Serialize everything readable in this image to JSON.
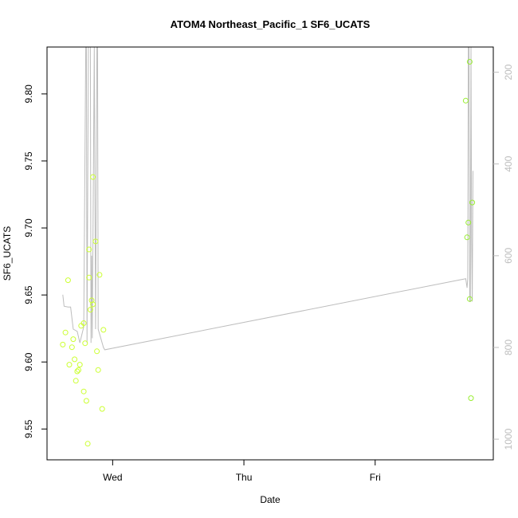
{
  "chart_data": {
    "type": "scatter",
    "title": "ATOM4 Northeast_Pacific_1 SF6_UCATS",
    "xlabel": "Date",
    "ylabel": "SF6_UCATS",
    "x_ticks": [
      "Wed",
      "Thu",
      "Fri"
    ],
    "y_ticks": [
      "9.55",
      "9.60",
      "9.65",
      "9.70",
      "9.75",
      "9.80"
    ],
    "y_right_ticks": [
      "200",
      "400",
      "600",
      "800",
      "1000"
    ],
    "xlim_days": [
      -0.5,
      2.9
    ],
    "ylim": [
      9.527,
      9.835
    ],
    "y_right_lim": [
      1045,
      145
    ],
    "y_right_reversed": true,
    "grid": false,
    "colors": {
      "points_early": "#ccff33",
      "points_late": "#99ee33",
      "altitude_line": "#bdbdbd",
      "frame": "#000000",
      "right_axis": "#bdbdbd"
    },
    "series": [
      {
        "role": "scatter",
        "points": [
          {
            "x": -0.38,
            "y": 9.613,
            "color": "points_early"
          },
          {
            "x": -0.36,
            "y": 9.622,
            "color": "points_early"
          },
          {
            "x": -0.34,
            "y": 9.661,
            "color": "points_early"
          },
          {
            "x": -0.33,
            "y": 9.598,
            "color": "points_early"
          },
          {
            "x": -0.31,
            "y": 9.611,
            "color": "points_early"
          },
          {
            "x": -0.3,
            "y": 9.617,
            "color": "points_early"
          },
          {
            "x": -0.29,
            "y": 9.602,
            "color": "points_early"
          },
          {
            "x": -0.28,
            "y": 9.586,
            "color": "points_early"
          },
          {
            "x": -0.27,
            "y": 9.593,
            "color": "points_early"
          },
          {
            "x": -0.26,
            "y": 9.594,
            "color": "points_early"
          },
          {
            "x": -0.25,
            "y": 9.598,
            "color": "points_early"
          },
          {
            "x": -0.24,
            "y": 9.627,
            "color": "points_early"
          },
          {
            "x": -0.22,
            "y": 9.629,
            "color": "points_early"
          },
          {
            "x": -0.22,
            "y": 9.578,
            "color": "points_early"
          },
          {
            "x": -0.21,
            "y": 9.614,
            "color": "points_early"
          },
          {
            "x": -0.2,
            "y": 9.571,
            "color": "points_early"
          },
          {
            "x": -0.19,
            "y": 9.539,
            "color": "points_early"
          },
          {
            "x": -0.18,
            "y": 9.684,
            "color": "points_early"
          },
          {
            "x": -0.18,
            "y": 9.663,
            "color": "points_early"
          },
          {
            "x": -0.17,
            "y": 9.639,
            "color": "points_early"
          },
          {
            "x": -0.16,
            "y": 9.646,
            "color": "points_early"
          },
          {
            "x": -0.15,
            "y": 9.738,
            "color": "points_early"
          },
          {
            "x": -0.15,
            "y": 9.643,
            "color": "points_early"
          },
          {
            "x": -0.13,
            "y": 9.69,
            "color": "points_early"
          },
          {
            "x": -0.12,
            "y": 9.608,
            "color": "points_early"
          },
          {
            "x": -0.11,
            "y": 9.594,
            "color": "points_early"
          },
          {
            "x": -0.1,
            "y": 9.665,
            "color": "points_early"
          },
          {
            "x": -0.08,
            "y": 9.565,
            "color": "points_early"
          },
          {
            "x": -0.07,
            "y": 9.624,
            "color": "points_early"
          },
          {
            "x": 2.69,
            "y": 9.795,
            "color": "points_late"
          },
          {
            "x": 2.7,
            "y": 9.693,
            "color": "points_late"
          },
          {
            "x": 2.71,
            "y": 9.704,
            "color": "points_late"
          },
          {
            "x": 2.72,
            "y": 9.647,
            "color": "points_late"
          },
          {
            "x": 2.72,
            "y": 9.824,
            "color": "points_late"
          },
          {
            "x": 2.73,
            "y": 9.573,
            "color": "points_late"
          },
          {
            "x": 2.74,
            "y": 9.719,
            "color": "points_late"
          }
        ]
      },
      {
        "role": "line",
        "axis": "right",
        "points": [
          {
            "x": -0.38,
            "y": 685
          },
          {
            "x": -0.37,
            "y": 710
          },
          {
            "x": -0.34,
            "y": 712
          },
          {
            "x": -0.32,
            "y": 712
          },
          {
            "x": -0.3,
            "y": 760
          },
          {
            "x": -0.27,
            "y": 765
          },
          {
            "x": -0.25,
            "y": 790
          },
          {
            "x": -0.22,
            "y": 755
          },
          {
            "x": -0.205,
            "y": 145
          },
          {
            "x": -0.2,
            "y": 145
          },
          {
            "x": -0.195,
            "y": 790
          },
          {
            "x": -0.185,
            "y": 145
          },
          {
            "x": -0.17,
            "y": 145
          },
          {
            "x": -0.165,
            "y": 790
          },
          {
            "x": -0.16,
            "y": 600
          },
          {
            "x": -0.155,
            "y": 780
          },
          {
            "x": -0.14,
            "y": 145
          },
          {
            "x": -0.13,
            "y": 760
          },
          {
            "x": -0.12,
            "y": 145
          },
          {
            "x": -0.115,
            "y": 145
          },
          {
            "x": -0.11,
            "y": 760
          },
          {
            "x": -0.07,
            "y": 800
          },
          {
            "x": -0.06,
            "y": 805
          },
          {
            "x": 2.69,
            "y": 650
          },
          {
            "x": 2.7,
            "y": 670
          },
          {
            "x": 2.705,
            "y": 650
          },
          {
            "x": 2.71,
            "y": 145
          },
          {
            "x": 2.715,
            "y": 145
          },
          {
            "x": 2.72,
            "y": 700
          },
          {
            "x": 2.725,
            "y": 700
          },
          {
            "x": 2.73,
            "y": 145
          },
          {
            "x": 2.735,
            "y": 560
          },
          {
            "x": 2.74,
            "y": 700
          },
          {
            "x": 2.745,
            "y": 415
          }
        ]
      }
    ]
  }
}
